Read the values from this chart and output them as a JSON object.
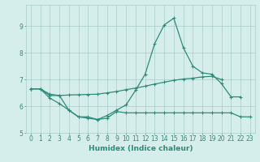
{
  "xlabel": "Humidex (Indice chaleur)",
  "x": [
    0,
    1,
    2,
    3,
    4,
    5,
    6,
    7,
    8,
    9,
    10,
    11,
    12,
    13,
    14,
    15,
    16,
    17,
    18,
    19,
    20,
    21,
    22,
    23
  ],
  "line1": [
    6.65,
    6.65,
    6.4,
    6.4,
    5.85,
    5.6,
    5.6,
    5.5,
    5.65,
    5.85,
    6.05,
    6.6,
    7.2,
    8.35,
    9.05,
    9.3,
    8.2,
    7.5,
    7.25,
    7.2,
    6.85,
    6.35,
    6.35,
    null
  ],
  "line2": [
    6.65,
    6.65,
    6.45,
    6.4,
    6.42,
    6.43,
    6.44,
    6.45,
    6.5,
    6.55,
    6.62,
    6.68,
    6.75,
    6.83,
    6.9,
    6.97,
    7.02,
    7.05,
    7.1,
    7.12,
    7.0,
    null,
    null,
    null
  ],
  "line3": [
    6.65,
    6.65,
    6.3,
    6.1,
    5.85,
    5.6,
    5.55,
    5.5,
    5.55,
    5.8,
    5.75,
    5.75,
    5.75,
    5.75,
    5.75,
    5.75,
    5.75,
    5.75,
    5.75,
    5.75,
    5.75,
    5.75,
    5.6,
    5.6
  ],
  "color": "#2e8b7a",
  "bg_color": "#d6eeeb",
  "grid_color": "#a8ccc8",
  "ylim": [
    5.0,
    9.8
  ],
  "xlim": [
    -0.5,
    23.5
  ],
  "yticks": [
    5,
    6,
    7,
    8,
    9
  ],
  "xticks": [
    0,
    1,
    2,
    3,
    4,
    5,
    6,
    7,
    8,
    9,
    10,
    11,
    12,
    13,
    14,
    15,
    16,
    17,
    18,
    19,
    20,
    21,
    22,
    23
  ],
  "marker": "+",
  "markersize": 3,
  "linewidth": 0.9,
  "tick_fontsize": 5.5,
  "xlabel_fontsize": 6.5
}
